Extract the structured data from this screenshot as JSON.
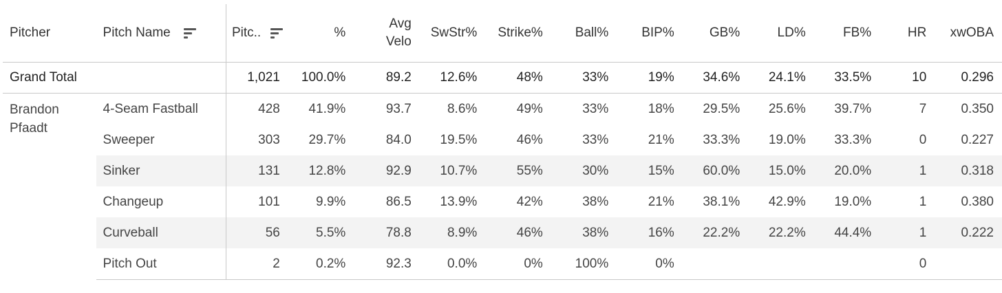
{
  "headers": {
    "pitcher": "Pitcher",
    "pitch_name": "Pitch Name",
    "pitches": "Pitc..",
    "pct": "%",
    "avg_velo_line1": "Avg",
    "avg_velo_line2": "Velo",
    "swstr": "SwStr%",
    "strike": "Strike%",
    "ball": "Ball%",
    "bip": "BIP%",
    "gb": "GB%",
    "ld": "LD%",
    "fb": "FB%",
    "hr": "HR",
    "xwoba": "xwOBA"
  },
  "icons": {
    "sort_pitch_name": "sort-descending-icon",
    "sort_pitches": "sort-descending-icon"
  },
  "grand_total": {
    "label": "Grand Total",
    "values": [
      "1,021",
      "100.0%",
      "89.2",
      "12.6%",
      "48%",
      "33%",
      "19%",
      "34.6%",
      "24.1%",
      "33.5%",
      "10",
      "0.296"
    ]
  },
  "pitcher": {
    "line1": "Brandon",
    "line2": "Pfaadt"
  },
  "rows": [
    {
      "name": "4-Seam Fastball",
      "values": [
        "428",
        "41.9%",
        "93.7",
        "8.6%",
        "49%",
        "33%",
        "18%",
        "29.5%",
        "25.6%",
        "39.7%",
        "7",
        "0.350"
      ]
    },
    {
      "name": "Sweeper",
      "values": [
        "303",
        "29.7%",
        "84.0",
        "19.5%",
        "46%",
        "33%",
        "21%",
        "33.3%",
        "19.0%",
        "33.3%",
        "0",
        "0.227"
      ]
    },
    {
      "name": "Sinker",
      "values": [
        "131",
        "12.8%",
        "92.9",
        "10.7%",
        "55%",
        "30%",
        "15%",
        "60.0%",
        "15.0%",
        "20.0%",
        "1",
        "0.318"
      ]
    },
    {
      "name": "Changeup",
      "values": [
        "101",
        "9.9%",
        "86.5",
        "13.9%",
        "42%",
        "38%",
        "21%",
        "38.1%",
        "42.9%",
        "19.0%",
        "1",
        "0.380"
      ]
    },
    {
      "name": "Curveball",
      "values": [
        "56",
        "5.5%",
        "78.8",
        "8.9%",
        "46%",
        "38%",
        "16%",
        "22.2%",
        "22.2%",
        "44.4%",
        "1",
        "0.222"
      ]
    },
    {
      "name": "Pitch Out",
      "values": [
        "2",
        "0.2%",
        "92.3",
        "0.0%",
        "0%",
        "100%",
        "0%",
        "",
        "",
        "",
        "0",
        ""
      ]
    }
  ],
  "colors": {
    "band": "#f3f3f3",
    "divider": "#c8c8c8",
    "text": "#333333"
  }
}
